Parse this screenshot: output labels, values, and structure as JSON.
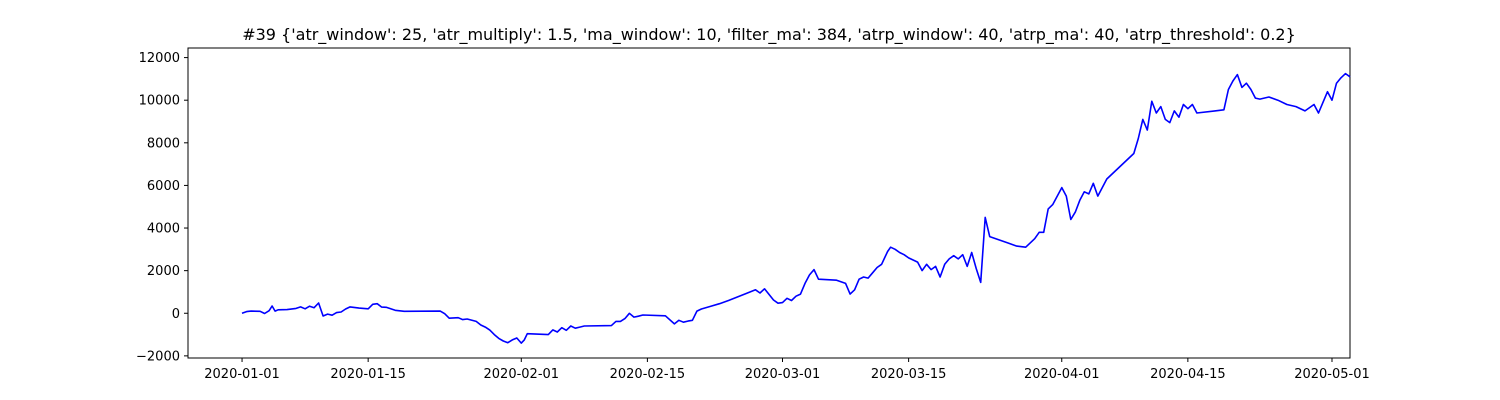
{
  "chart_data": {
    "type": "line",
    "title": "#39 {'atr_window': 25, 'atr_multiply': 1.5, 'ma_window': 10, 'filter_ma': 384, 'atrp_window': 40, 'atrp_ma': 40, 'atrp_threshold': 0.2}",
    "xlabel": "",
    "ylabel": "",
    "x_ticks": [
      "2020-01-01",
      "2020-01-15",
      "2020-02-01",
      "2020-02-15",
      "2020-03-01",
      "2020-03-15",
      "2020-04-01",
      "2020-04-15",
      "2020-05-01"
    ],
    "y_ticks": [
      -2000,
      0,
      2000,
      4000,
      6000,
      8000,
      10000,
      12000
    ],
    "ylim": [
      -2100,
      12450
    ],
    "xlim": [
      "2019-12-26",
      "2020-05-03"
    ],
    "grid": false,
    "series": [
      {
        "color": "#0000ff",
        "points": [
          [
            "2020-01-01",
            0
          ],
          [
            "2020-01-01",
            80
          ],
          [
            "2020-01-02",
            100
          ],
          [
            "2020-01-03",
            90
          ],
          [
            "2020-01-03",
            -10
          ],
          [
            "2020-01-04",
            120
          ],
          [
            "2020-01-04",
            340
          ],
          [
            "2020-01-04",
            100
          ],
          [
            "2020-01-05",
            160
          ],
          [
            "2020-01-06",
            170
          ],
          [
            "2020-01-07",
            230
          ],
          [
            "2020-01-07",
            300
          ],
          [
            "2020-01-08",
            210
          ],
          [
            "2020-01-08",
            330
          ],
          [
            "2020-01-09",
            260
          ],
          [
            "2020-01-09",
            480
          ],
          [
            "2020-01-10",
            -130
          ],
          [
            "2020-01-10",
            -40
          ],
          [
            "2020-01-11",
            -90
          ],
          [
            "2020-01-11",
            30
          ],
          [
            "2020-01-12",
            60
          ],
          [
            "2020-01-12",
            200
          ],
          [
            "2020-01-13",
            300
          ],
          [
            "2020-01-14",
            240
          ],
          [
            "2020-01-15",
            210
          ],
          [
            "2020-01-15",
            420
          ],
          [
            "2020-01-16",
            450
          ],
          [
            "2020-01-16",
            290
          ],
          [
            "2020-01-17",
            280
          ],
          [
            "2020-01-18",
            140
          ],
          [
            "2020-01-19",
            90
          ],
          [
            "2020-01-23",
            100
          ],
          [
            "2020-01-23",
            -20
          ],
          [
            "2020-01-24",
            -230
          ],
          [
            "2020-01-25",
            -210
          ],
          [
            "2020-01-25",
            -300
          ],
          [
            "2020-01-26",
            -270
          ],
          [
            "2020-01-27",
            -380
          ],
          [
            "2020-01-27",
            -550
          ],
          [
            "2020-01-28",
            -650
          ],
          [
            "2020-01-28",
            -790
          ],
          [
            "2020-01-29",
            -1000
          ],
          [
            "2020-01-29",
            -1180
          ],
          [
            "2020-01-30",
            -1300
          ],
          [
            "2020-01-30",
            -1380
          ],
          [
            "2020-01-31",
            -1250
          ],
          [
            "2020-01-31",
            -1160
          ],
          [
            "2020-02-01",
            -1400
          ],
          [
            "2020-02-01",
            -1250
          ],
          [
            "2020-02-01",
            -960
          ],
          [
            "2020-02-04",
            -1000
          ],
          [
            "2020-02-04",
            -780
          ],
          [
            "2020-02-05",
            -880
          ],
          [
            "2020-02-05",
            -680
          ],
          [
            "2020-02-06",
            -800
          ],
          [
            "2020-02-06",
            -600
          ],
          [
            "2020-02-07",
            -700
          ],
          [
            "2020-02-07",
            -650
          ],
          [
            "2020-02-08",
            -600
          ],
          [
            "2020-02-11",
            -580
          ],
          [
            "2020-02-11",
            -380
          ],
          [
            "2020-02-12",
            -380
          ],
          [
            "2020-02-12",
            -250
          ],
          [
            "2020-02-13",
            0
          ],
          [
            "2020-02-13",
            -180
          ],
          [
            "2020-02-14",
            -140
          ],
          [
            "2020-02-14",
            -80
          ],
          [
            "2020-02-17",
            -120
          ],
          [
            "2020-02-18",
            -500
          ],
          [
            "2020-02-18",
            -330
          ],
          [
            "2020-02-19",
            -420
          ],
          [
            "2020-02-19",
            -370
          ],
          [
            "2020-02-20",
            -330
          ],
          [
            "2020-02-20",
            100
          ],
          [
            "2020-02-21",
            200
          ],
          [
            "2020-02-22",
            320
          ],
          [
            "2020-02-23",
            450
          ],
          [
            "2020-02-24",
            600
          ],
          [
            "2020-02-26",
            930
          ],
          [
            "2020-02-27",
            1100
          ],
          [
            "2020-02-27",
            950
          ],
          [
            "2020-02-28",
            1150
          ],
          [
            "2020-02-29",
            620
          ],
          [
            "2020-02-29",
            470
          ],
          [
            "2020-03-01",
            500
          ],
          [
            "2020-03-01",
            700
          ],
          [
            "2020-03-02",
            600
          ],
          [
            "2020-03-02",
            800
          ],
          [
            "2020-03-03",
            900
          ],
          [
            "2020-03-03",
            1400
          ],
          [
            "2020-03-04",
            1800
          ],
          [
            "2020-03-04",
            2050
          ],
          [
            "2020-03-05",
            1600
          ],
          [
            "2020-03-07",
            1550
          ],
          [
            "2020-03-08",
            1400
          ],
          [
            "2020-03-08",
            900
          ],
          [
            "2020-03-09",
            1100
          ],
          [
            "2020-03-09",
            1600
          ],
          [
            "2020-03-10",
            1700
          ],
          [
            "2020-03-10",
            1650
          ],
          [
            "2020-03-11",
            1900
          ],
          [
            "2020-03-11",
            2150
          ],
          [
            "2020-03-12",
            2300
          ],
          [
            "2020-03-12",
            2600
          ],
          [
            "2020-03-12",
            2900
          ],
          [
            "2020-03-13",
            3100
          ],
          [
            "2020-03-13",
            3000
          ],
          [
            "2020-03-14",
            2850
          ],
          [
            "2020-03-14",
            2750
          ],
          [
            "2020-03-15",
            2600
          ],
          [
            "2020-03-16",
            2400
          ],
          [
            "2020-03-16",
            2000
          ],
          [
            "2020-03-17",
            2300
          ],
          [
            "2020-03-17",
            2050
          ],
          [
            "2020-03-18",
            2200
          ],
          [
            "2020-03-18",
            1700
          ],
          [
            "2020-03-19",
            2300
          ],
          [
            "2020-03-19",
            2550
          ],
          [
            "2020-03-20",
            2700
          ],
          [
            "2020-03-20",
            2550
          ],
          [
            "2020-03-21",
            2750
          ],
          [
            "2020-03-21",
            2200
          ],
          [
            "2020-03-22",
            2850
          ],
          [
            "2020-03-22",
            2100
          ],
          [
            "2020-03-23",
            1450
          ],
          [
            "2020-03-23",
            4500
          ],
          [
            "2020-03-24",
            3600
          ],
          [
            "2020-03-26",
            3300
          ],
          [
            "2020-03-27",
            3150
          ],
          [
            "2020-03-28",
            3100
          ],
          [
            "2020-03-29",
            3500
          ],
          [
            "2020-03-29",
            3800
          ],
          [
            "2020-03-30",
            3800
          ],
          [
            "2020-03-30",
            4900
          ],
          [
            "2020-03-31",
            5100
          ],
          [
            "2020-04-01",
            5900
          ],
          [
            "2020-04-01",
            5500
          ],
          [
            "2020-04-02",
            4400
          ],
          [
            "2020-04-02",
            4750
          ],
          [
            "2020-04-03",
            5300
          ],
          [
            "2020-04-03",
            5700
          ],
          [
            "2020-04-04",
            5600
          ],
          [
            "2020-04-04",
            6100
          ],
          [
            "2020-04-05",
            5500
          ],
          [
            "2020-04-06",
            6300
          ],
          [
            "2020-04-09",
            7500
          ],
          [
            "2020-04-09",
            8200
          ],
          [
            "2020-04-10",
            9100
          ],
          [
            "2020-04-10",
            8600
          ],
          [
            "2020-04-11",
            9950
          ],
          [
            "2020-04-11",
            9400
          ],
          [
            "2020-04-12",
            9700
          ],
          [
            "2020-04-12",
            9100
          ],
          [
            "2020-04-13",
            8950
          ],
          [
            "2020-04-13",
            9500
          ],
          [
            "2020-04-14",
            9200
          ],
          [
            "2020-04-14",
            9800
          ],
          [
            "2020-04-15",
            9600
          ],
          [
            "2020-04-15",
            9800
          ],
          [
            "2020-04-16",
            9400
          ],
          [
            "2020-04-18",
            9500
          ],
          [
            "2020-04-19",
            9550
          ],
          [
            "2020-04-19",
            10500
          ],
          [
            "2020-04-20",
            10900
          ],
          [
            "2020-04-20",
            11200
          ],
          [
            "2020-04-21",
            10600
          ],
          [
            "2020-04-21",
            10800
          ],
          [
            "2020-04-22",
            10500
          ],
          [
            "2020-04-22",
            10100
          ],
          [
            "2020-04-23",
            10050
          ],
          [
            "2020-04-24",
            10150
          ],
          [
            "2020-04-25",
            10000
          ],
          [
            "2020-04-26",
            9800
          ],
          [
            "2020-04-27",
            9700
          ],
          [
            "2020-04-28",
            9500
          ],
          [
            "2020-04-29",
            9800
          ],
          [
            "2020-04-29",
            9400
          ],
          [
            "2020-04-30",
            9900
          ],
          [
            "2020-04-30",
            10400
          ],
          [
            "2020-05-01",
            10000
          ],
          [
            "2020-05-01",
            10800
          ],
          [
            "2020-05-02",
            11050
          ],
          [
            "2020-05-02",
            11250
          ],
          [
            "2020-05-03",
            11100
          ]
        ]
      }
    ]
  }
}
